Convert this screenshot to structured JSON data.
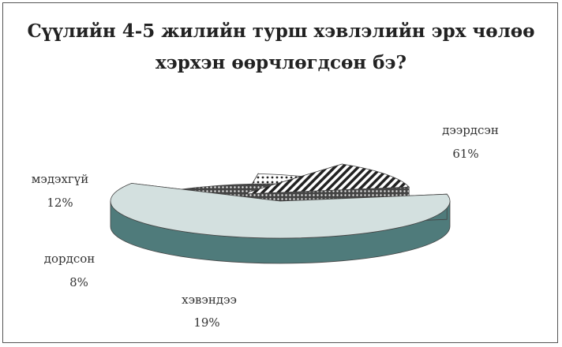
{
  "chart_data": {
    "type": "pie",
    "title_lines": [
      "Сүүлийн 4-5 жилийн турш хэвлэлийн эрх чөлөө",
      "хэрхэн өөрчлөгдсөн бэ?"
    ],
    "slices": [
      {
        "label": "дээрдсэн",
        "value": 61,
        "value_text": "61%"
      },
      {
        "label": "хэвэндээ",
        "value": 19,
        "value_text": "19%"
      },
      {
        "label": "дордсон",
        "value": 8,
        "value_text": "8%"
      },
      {
        "label": "мэдэхгүй",
        "value": 12,
        "value_text": "12%"
      }
    ],
    "colors": {
      "top_main": "#d3e0df",
      "side_main": "#4f7b7b",
      "hatch": "#222222",
      "outline": "#444444"
    },
    "style": "3d-exploded-pie",
    "legend": "none"
  }
}
